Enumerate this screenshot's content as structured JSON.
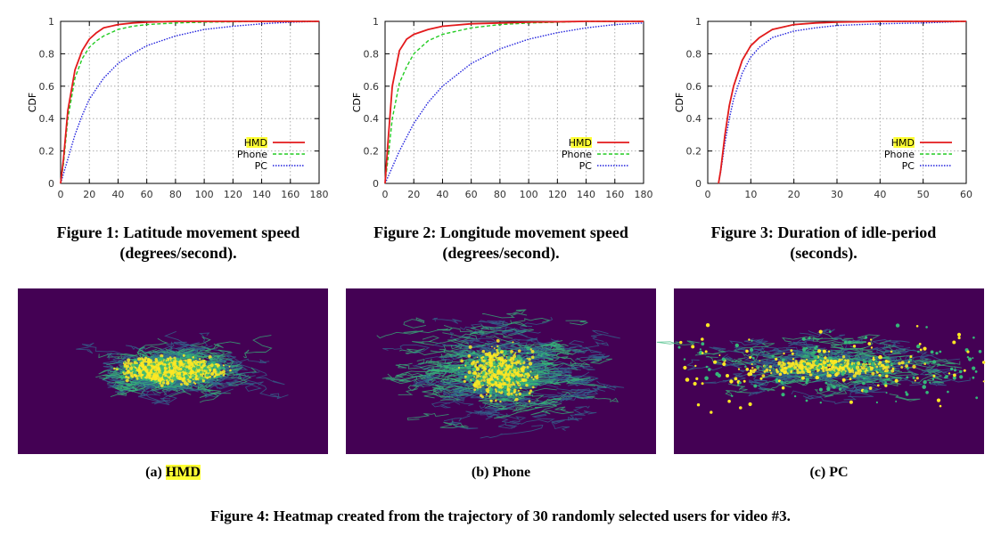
{
  "chart_data": [
    {
      "type": "line",
      "ylabel": "CDF",
      "xlim": [
        0,
        180
      ],
      "ylim": [
        0,
        1
      ],
      "xticks": [
        "0",
        "20",
        "40",
        "60",
        "80",
        "100",
        "120",
        "140",
        "160",
        "180"
      ],
      "yticks": [
        "0",
        "0.2",
        "0.4",
        "0.6",
        "0.8",
        "1"
      ],
      "grid": true,
      "legend_position": "bottom-right",
      "series": [
        {
          "name": "HMD",
          "color": "#e31a1c",
          "style": "solid",
          "x": [
            0,
            2,
            5,
            10,
            15,
            20,
            25,
            30,
            40,
            50,
            60,
            80,
            100,
            140,
            180
          ],
          "y": [
            0,
            0.15,
            0.45,
            0.7,
            0.82,
            0.89,
            0.93,
            0.96,
            0.98,
            0.99,
            0.995,
            1,
            1,
            1,
            1
          ]
        },
        {
          "name": "Phone",
          "color": "#22cc22",
          "style": "dashed",
          "x": [
            0,
            2,
            5,
            10,
            15,
            20,
            25,
            30,
            40,
            50,
            60,
            80,
            100,
            140,
            180
          ],
          "y": [
            0,
            0.12,
            0.4,
            0.65,
            0.77,
            0.84,
            0.88,
            0.91,
            0.95,
            0.97,
            0.98,
            0.99,
            0.995,
            1,
            1
          ]
        },
        {
          "name": "PC",
          "color": "#2222dd",
          "style": "dotted",
          "x": [
            0,
            5,
            10,
            15,
            20,
            30,
            40,
            50,
            60,
            80,
            100,
            120,
            140,
            160,
            180
          ],
          "y": [
            0,
            0.15,
            0.3,
            0.42,
            0.52,
            0.65,
            0.74,
            0.8,
            0.85,
            0.91,
            0.95,
            0.97,
            0.985,
            0.995,
            1
          ]
        }
      ]
    },
    {
      "type": "line",
      "ylabel": "CDF",
      "xlim": [
        0,
        180
      ],
      "ylim": [
        0,
        1
      ],
      "xticks": [
        "0",
        "20",
        "40",
        "60",
        "80",
        "100",
        "120",
        "140",
        "160",
        "180"
      ],
      "yticks": [
        "0",
        "0.2",
        "0.4",
        "0.6",
        "0.8",
        "1"
      ],
      "grid": true,
      "legend_position": "bottom-right",
      "series": [
        {
          "name": "HMD",
          "color": "#e31a1c",
          "style": "solid",
          "x": [
            0,
            2,
            5,
            10,
            15,
            20,
            30,
            40,
            60,
            80,
            100,
            140,
            180
          ],
          "y": [
            0,
            0.25,
            0.6,
            0.82,
            0.89,
            0.92,
            0.95,
            0.97,
            0.985,
            0.99,
            0.995,
            1,
            1
          ]
        },
        {
          "name": "Phone",
          "color": "#22cc22",
          "style": "dashed",
          "x": [
            0,
            2,
            5,
            10,
            15,
            20,
            30,
            40,
            60,
            80,
            100,
            140,
            180
          ],
          "y": [
            0,
            0.15,
            0.4,
            0.62,
            0.72,
            0.8,
            0.88,
            0.92,
            0.96,
            0.98,
            0.99,
            1,
            1
          ]
        },
        {
          "name": "PC",
          "color": "#2222dd",
          "style": "dotted",
          "x": [
            0,
            5,
            10,
            20,
            30,
            40,
            60,
            80,
            100,
            120,
            140,
            160,
            180
          ],
          "y": [
            0,
            0.1,
            0.2,
            0.37,
            0.5,
            0.6,
            0.74,
            0.83,
            0.89,
            0.93,
            0.96,
            0.98,
            0.99
          ]
        }
      ]
    },
    {
      "type": "line",
      "ylabel": "CDF",
      "xlim": [
        0,
        60
      ],
      "ylim": [
        0,
        1
      ],
      "xticks": [
        "0",
        "10",
        "20",
        "30",
        "40",
        "50",
        "60"
      ],
      "yticks": [
        "0",
        "0.2",
        "0.4",
        "0.6",
        "0.8",
        "1"
      ],
      "grid": true,
      "legend_position": "bottom-right",
      "series": [
        {
          "name": "HMD",
          "color": "#e31a1c",
          "style": "solid",
          "x": [
            2.5,
            3,
            4,
            5,
            6,
            8,
            10,
            12,
            15,
            20,
            25,
            30,
            40,
            50,
            60
          ],
          "y": [
            0,
            0.08,
            0.3,
            0.48,
            0.6,
            0.76,
            0.85,
            0.9,
            0.95,
            0.98,
            0.99,
            0.995,
            1,
            1,
            1
          ]
        },
        {
          "name": "Phone",
          "color": "#22cc22",
          "style": "dashed",
          "x": [
            2.5,
            3,
            4,
            5,
            6,
            8,
            10,
            12,
            15,
            20,
            25,
            30,
            40,
            50,
            60
          ],
          "y": [
            0,
            0.08,
            0.3,
            0.48,
            0.6,
            0.76,
            0.85,
            0.9,
            0.95,
            0.98,
            0.99,
            0.995,
            1,
            1,
            1
          ]
        },
        {
          "name": "PC",
          "color": "#2222dd",
          "style": "dotted",
          "x": [
            2.5,
            3,
            4,
            5,
            6,
            8,
            10,
            12,
            15,
            20,
            25,
            30,
            40,
            50,
            60
          ],
          "y": [
            0,
            0.07,
            0.25,
            0.4,
            0.52,
            0.68,
            0.78,
            0.84,
            0.9,
            0.94,
            0.96,
            0.975,
            0.985,
            0.99,
            1
          ]
        }
      ]
    }
  ],
  "figure_captions": [
    {
      "line1": "Figure 1: Latitude movement speed",
      "line2": "(degrees/second)."
    },
    {
      "line1": "Figure 2: Longitude movement speed",
      "line2": "(degrees/second)."
    },
    {
      "line1": "Figure 3: Duration of idle-period",
      "line2": "(seconds)."
    }
  ],
  "heatmaps": {
    "colors": {
      "background": "#440154",
      "low": "#31688e",
      "mid": "#35b779",
      "high": "#fde725"
    },
    "panels": [
      {
        "prefix": "(a) ",
        "label": "HMD",
        "highlight": true
      },
      {
        "prefix": "(b) ",
        "label": "Phone",
        "highlight": false
      },
      {
        "prefix": "(c) ",
        "label": "PC",
        "highlight": false
      }
    ]
  },
  "main_caption": "Figure 4: Heatmap created from the trajectory of 30 randomly selected users for video #3."
}
